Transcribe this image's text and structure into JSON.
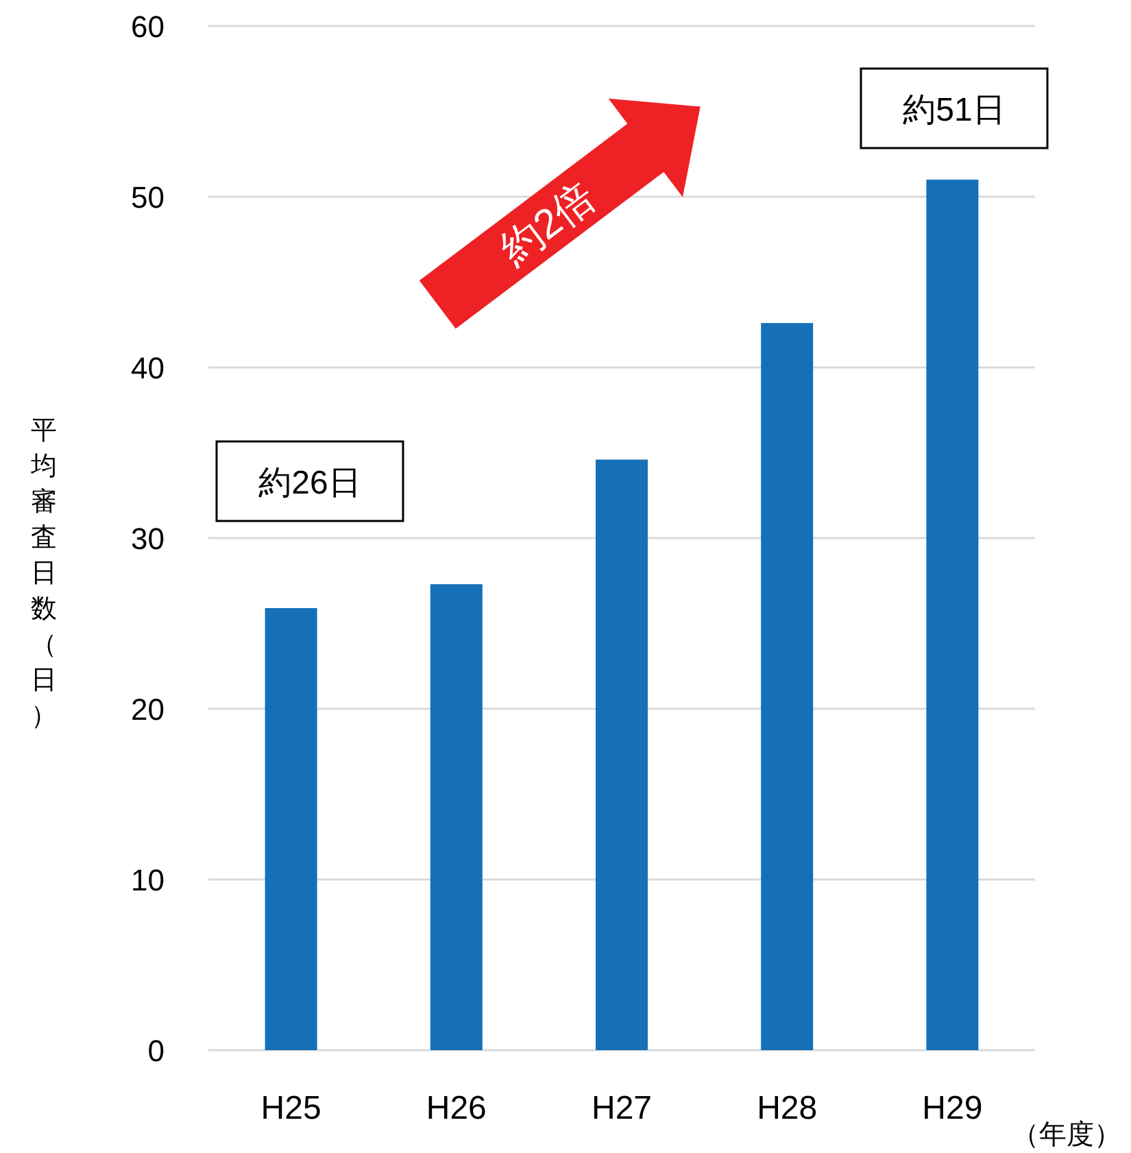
{
  "chart_data": {
    "type": "bar",
    "ylabel": "平均審査日数（日）",
    "xlabel": "（年度）",
    "categories": [
      "H25",
      "H26",
      "H27",
      "H28",
      "H29"
    ],
    "values": [
      25.9,
      27.3,
      34.6,
      42.6,
      51.0
    ],
    "color": "#1570b8",
    "ylim": [
      0,
      60
    ],
    "yticks": [
      0,
      10,
      20,
      30,
      40,
      50,
      60
    ],
    "grid": "y",
    "annotations": [
      "約26日",
      "約51日",
      "約2倍"
    ]
  }
}
